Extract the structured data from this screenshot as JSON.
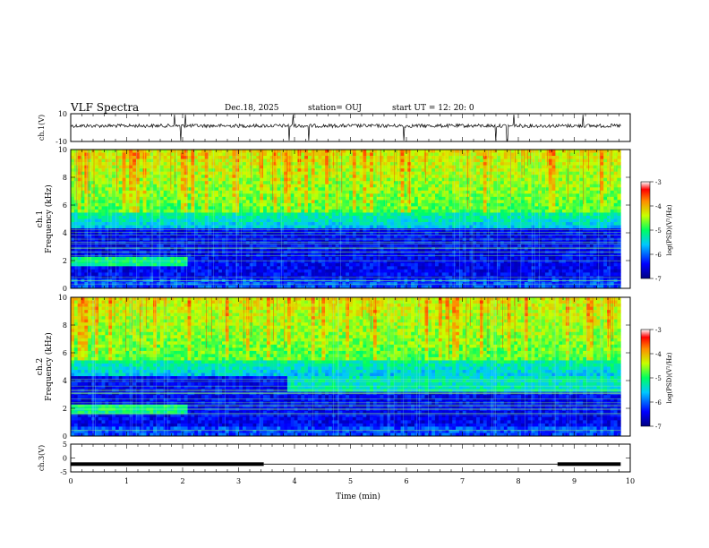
{
  "header": {
    "title": "VLF Spectra",
    "date": "Dec.18, 2025",
    "station": "station= OUJ",
    "start": "start  UT =   12: 20: 0"
  },
  "chart_data": [
    {
      "type": "line",
      "name": "ch1-waveform",
      "ylabel": "ch.1(V)",
      "yticks": [
        "10",
        "-10"
      ],
      "ylim": [
        -10,
        10
      ],
      "xlim": [
        0,
        9.83
      ]
    },
    {
      "type": "heatmap",
      "name": "ch1-spectrogram",
      "ylabel_top": "ch.1",
      "ylabel": "Frequency  (kHz)",
      "yticks": [
        "0",
        "2",
        "4",
        "6",
        "8",
        "10"
      ],
      "ylim": [
        0,
        10
      ],
      "xlim": [
        0,
        9.83
      ],
      "colorbar": {
        "ticks": [
          "-3",
          "-4",
          "-5",
          "-6",
          "-7"
        ],
        "label": "log(PSD)(V²/Hz)",
        "range": [
          -7,
          -3
        ]
      }
    },
    {
      "type": "heatmap",
      "name": "ch2-spectrogram",
      "ylabel_top": "ch.2",
      "ylabel": "Frequency  (kHz)",
      "yticks": [
        "0",
        "2",
        "4",
        "6",
        "8",
        "10"
      ],
      "ylim": [
        0,
        10
      ],
      "xlim": [
        0,
        9.83
      ],
      "colorbar": {
        "ticks": [
          "-3",
          "-4",
          "-5",
          "-6",
          "-7"
        ],
        "label": "log(PSD)(V²/Hz)",
        "range": [
          -7,
          -3
        ]
      }
    },
    {
      "type": "line",
      "name": "ch3-signal",
      "ylabel": "ch.3(V)",
      "yticks": [
        "5",
        "0",
        "-5"
      ],
      "ylim": [
        -5,
        5
      ],
      "xlim": [
        0,
        9.83
      ],
      "segments": [
        {
          "x0": 0,
          "x1": 3.45,
          "y": -2.2
        },
        {
          "x0": 8.7,
          "x1": 9.83,
          "y": -2.2
        }
      ]
    }
  ],
  "xaxis": {
    "label": "Time  (min)",
    "ticks": [
      "0",
      "1",
      "2",
      "3",
      "4",
      "5",
      "6",
      "7",
      "8",
      "9",
      "10"
    ],
    "range": [
      0,
      10
    ]
  }
}
